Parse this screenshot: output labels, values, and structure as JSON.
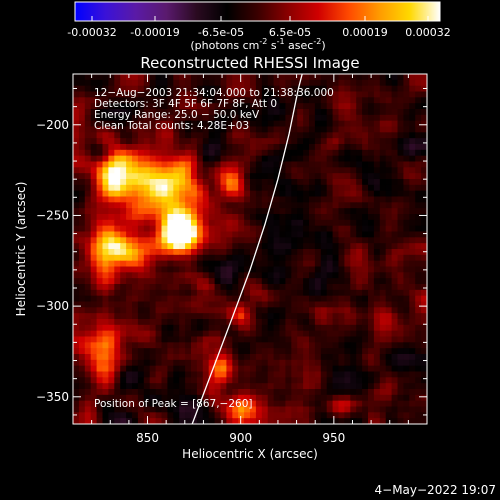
{
  "colorbar": {
    "tick_labels": [
      "-0.00032",
      "-0.00019",
      "-6.5e-05",
      "6.5e-05",
      "0.00019",
      "0.00032"
    ],
    "unit_prefix": "(photons cm",
    "unit_exp1": "-2",
    "unit_mid": " s",
    "unit_exp2": "-1",
    "unit_mid2": " asec",
    "unit_exp3": "-2",
    "unit_suffix": ")",
    "colormap": [
      "#0000ff",
      "#3a12d8",
      "#5a1aa6",
      "#5a1a6e",
      "#2a0a20",
      "#000000",
      "#3a0000",
      "#8a0000",
      "#d00000",
      "#ff4a00",
      "#ff9a00",
      "#ffd800",
      "#ffffff"
    ]
  },
  "chart_data": {
    "type": "heatmap",
    "title": "Reconstructed RHESSI Image",
    "xlabel": "Heliocentric X (arcsec)",
    "ylabel": "Heliocentric Y (arcsec)",
    "xlim": [
      810,
      1000
    ],
    "ylim": [
      -365,
      -172
    ],
    "x_ticks": [
      850,
      900,
      950
    ],
    "y_ticks": [
      -200,
      -250,
      -300,
      -350
    ],
    "x_tick_labels": [
      "850",
      "900",
      "950"
    ],
    "y_tick_labels": [
      "−200",
      "−250",
      "−300",
      "−350"
    ],
    "annotations": [
      "12−Aug−2003 21:34:04.000 to 21:38:36.000",
      "Detectors: 3F 4F 5F 6F 7F 8F, Att 0",
      "Energy Range: 25.0 − 50.0 keV",
      "Clean     Total counts: 4.28E+03"
    ],
    "peak_label": "Position of Peak = [867,−260]",
    "peak_position": [
      867,
      -260
    ],
    "limb": [
      [
        874,
        -365
      ],
      [
        885,
        -335
      ],
      [
        896,
        -305
      ],
      [
        905,
        -280
      ],
      [
        913,
        -255
      ],
      [
        920,
        -230
      ],
      [
        926,
        -205
      ],
      [
        931,
        -180
      ],
      [
        933,
        -172
      ]
    ],
    "sources": [
      {
        "x": 867,
        "y": -260,
        "sx": 8,
        "sy": 7,
        "amp": 3.2
      },
      {
        "x": 858,
        "y": -235,
        "sx": 14,
        "sy": 12,
        "amp": 1.9
      },
      {
        "x": 835,
        "y": -227,
        "sx": 8,
        "sy": 10,
        "amp": 1.6
      },
      {
        "x": 840,
        "y": -270,
        "sx": 9,
        "sy": 7,
        "amp": 1.3
      },
      {
        "x": 826,
        "y": -325,
        "sx": 7,
        "sy": 12,
        "amp": 1.2
      },
      {
        "x": 827,
        "y": -270,
        "sx": 6,
        "sy": 11,
        "amp": 1.1
      },
      {
        "x": 890,
        "y": -335,
        "sx": 6,
        "sy": 8,
        "amp": 0.9
      },
      {
        "x": 895,
        "y": -232,
        "sx": 5,
        "sy": 6,
        "amp": 0.9
      },
      {
        "x": 900,
        "y": -358,
        "sx": 6,
        "sy": 5,
        "amp": 1.0
      },
      {
        "x": 955,
        "y": -355,
        "sx": 5,
        "sy": 4,
        "amp": 0.8
      },
      {
        "x": 900,
        "y": -305,
        "sx": 4,
        "sy": 4,
        "amp": 0.7
      },
      {
        "x": 950,
        "y": -210,
        "sx": 4,
        "sy": 4,
        "amp": 0.6
      }
    ]
  },
  "footer": {
    "date": "4−May−2022 19:07"
  }
}
